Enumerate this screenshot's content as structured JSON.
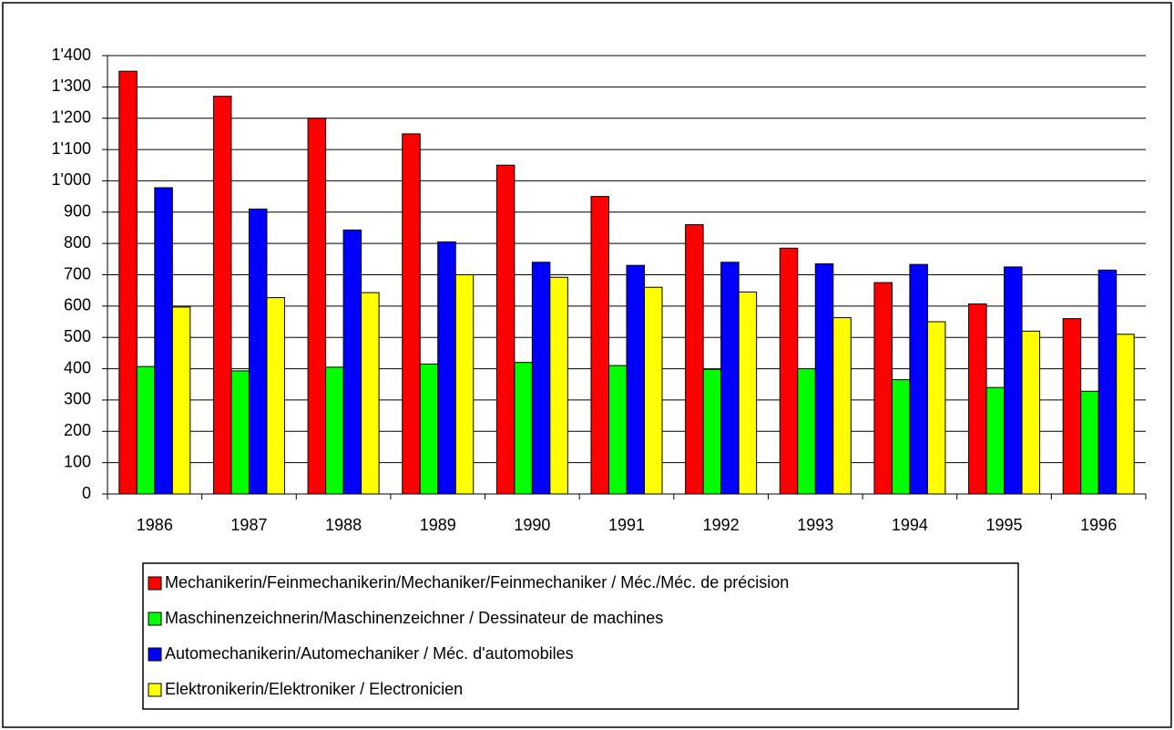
{
  "chart_data": {
    "type": "bar",
    "categories": [
      "1986",
      "1987",
      "1988",
      "1989",
      "1990",
      "1991",
      "1992",
      "1993",
      "1994",
      "1995",
      "1996"
    ],
    "series": [
      {
        "name": "Mechanikerin/Feinmechanikerin/Mechaniker/Feinmechaniker / Méc./Méc. de précision",
        "color": "#ff0000",
        "values": [
          1350,
          1270,
          1200,
          1150,
          1050,
          950,
          860,
          785,
          675,
          607,
          560
        ]
      },
      {
        "name": "Maschinenzeichnerin/Maschinenzeichner / Dessinateur de machines",
        "color": "#00ff00",
        "values": [
          407,
          393,
          405,
          415,
          420,
          410,
          398,
          400,
          365,
          340,
          328
        ]
      },
      {
        "name": "Automechanikerin/Automechaniker / Méc. d'automobiles",
        "color": "#0000ff",
        "values": [
          978,
          910,
          843,
          805,
          740,
          730,
          740,
          735,
          733,
          725,
          715
        ]
      },
      {
        "name": "Elektronikerin/Elektroniker / Electronicien",
        "color": "#ffff00",
        "values": [
          597,
          627,
          643,
          700,
          692,
          660,
          645,
          563,
          550,
          520,
          510
        ]
      }
    ],
    "ylim": [
      0,
      1400
    ],
    "yticks": [
      0,
      100,
      200,
      300,
      400,
      500,
      600,
      700,
      800,
      900,
      {
        "value": 1000,
        "label": "1'000"
      },
      {
        "value": 1100,
        "label": "1'100"
      },
      {
        "value": 1200,
        "label": "1'200"
      },
      {
        "value": 1300,
        "label": "1'300"
      },
      {
        "value": 1400,
        "label": "1'400"
      }
    ],
    "grid": true,
    "legend": "bottom"
  }
}
